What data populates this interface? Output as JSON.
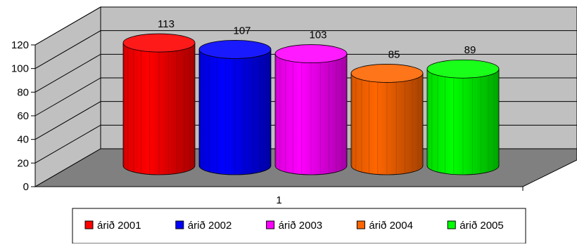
{
  "chart_data": {
    "type": "bar",
    "style": "3d-cylinder",
    "categories": [
      "1"
    ],
    "series": [
      {
        "name": "árið 2001",
        "values": [
          113
        ],
        "color": "#ff0000"
      },
      {
        "name": "árið 2002",
        "values": [
          107
        ],
        "color": "#0000ff"
      },
      {
        "name": "árið 2003",
        "values": [
          103
        ],
        "color": "#ff00ff"
      },
      {
        "name": "árið 2004",
        "values": [
          85
        ],
        "color": "#ff6600"
      },
      {
        "name": "árið 2005",
        "values": [
          89
        ],
        "color": "#00ff00"
      }
    ],
    "yticks": [
      0,
      20,
      40,
      60,
      80,
      100,
      120
    ],
    "ylim": [
      0,
      120
    ],
    "grid": true,
    "legend_position": "bottom",
    "wall_color": "#c0c0c0",
    "floor_color": "#808080"
  }
}
